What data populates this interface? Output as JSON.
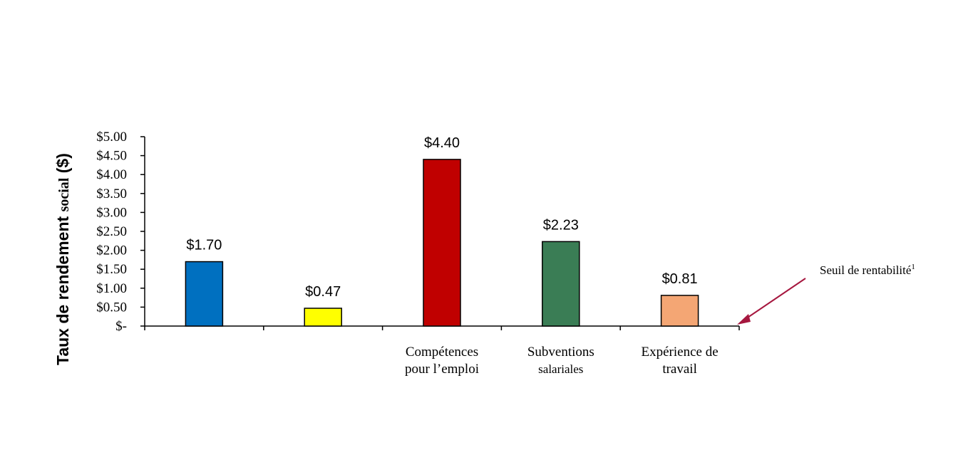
{
  "chart_data": {
    "type": "bar",
    "categories": [
      "",
      "",
      "Compétences pour l’emploi",
      "Subventions salariales",
      "Expérience de travail"
    ],
    "category_lines": [
      [],
      [],
      [
        "Compétences",
        "pour l’emploi"
      ],
      [
        "Subventions",
        "salariales"
      ],
      [
        "Expérience de",
        "travail"
      ]
    ],
    "values": [
      1.7,
      0.47,
      4.4,
      2.23,
      0.81
    ],
    "data_labels": [
      "$1.70",
      "$0.47",
      "$4.40",
      "$2.23",
      "$0.81"
    ],
    "colors": [
      "#0070C0",
      "#FFFF00",
      "#C00000",
      "#3A7D55",
      "#F4A674"
    ],
    "ylim": [
      0,
      5
    ],
    "yticks": [
      0,
      0.5,
      1,
      1.5,
      2,
      2.5,
      3,
      3.5,
      4,
      4.5,
      5
    ],
    "ytick_labels": [
      "$-",
      "$0.50",
      "$1.00",
      "$1.50",
      "$2.00",
      "$2.50",
      "$3.00",
      "$3.50",
      "$4.00",
      "$4.50",
      "$5.00"
    ],
    "ylabel_main": "Taux de rendement ",
    "ylabel_small": "social",
    "ylabel_end": " ($)",
    "grid": false,
    "annotation": {
      "text": "Seuil de rentabilité",
      "sup": "1",
      "arrow_color": "#A6173F"
    }
  }
}
